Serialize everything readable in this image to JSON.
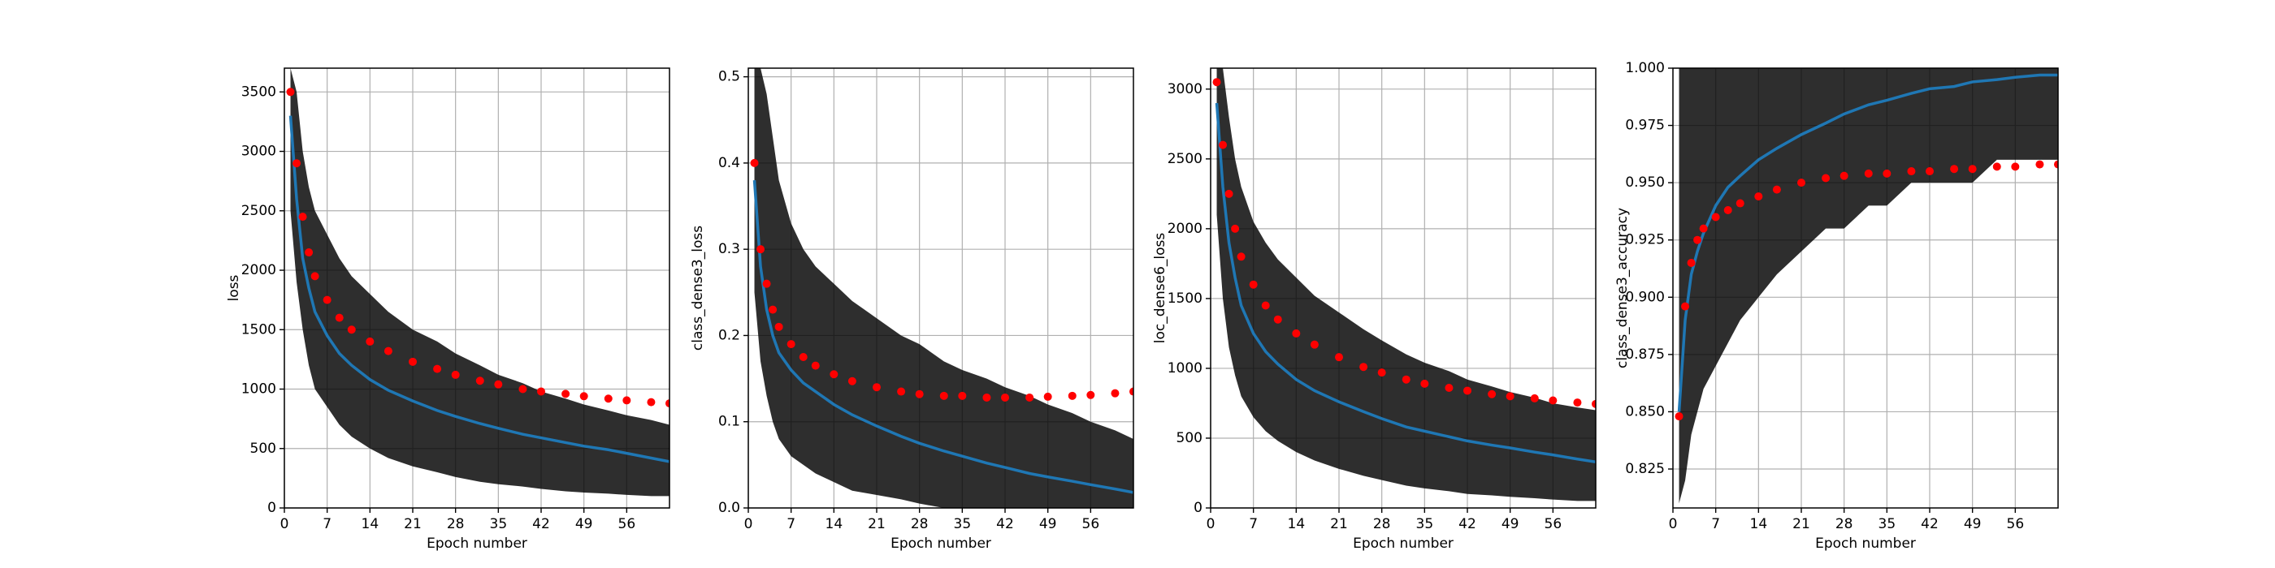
{
  "chart_data": [
    {
      "type": "line",
      "xlabel": "Epoch number",
      "ylabel": "loss",
      "x": [
        1,
        2,
        3,
        4,
        5,
        7,
        9,
        11,
        14,
        17,
        21,
        25,
        28,
        32,
        35,
        39,
        42,
        46,
        49,
        53,
        56,
        60,
        63
      ],
      "xlim": [
        0,
        63
      ],
      "xticks": [
        0,
        7,
        14,
        21,
        28,
        35,
        42,
        49,
        56
      ],
      "ylim": [
        0,
        3700
      ],
      "yticks": [
        0,
        500,
        1000,
        1500,
        2000,
        2500,
        3000,
        3500
      ],
      "grid": true,
      "series": [
        {
          "style": "band",
          "color": "#000000",
          "low": [
            2500,
            1900,
            1500,
            1200,
            1000,
            850,
            700,
            600,
            500,
            420,
            350,
            300,
            260,
            220,
            200,
            180,
            160,
            140,
            130,
            120,
            110,
            100,
            100
          ],
          "high": [
            3700,
            3500,
            3000,
            2700,
            2500,
            2300,
            2100,
            1950,
            1800,
            1650,
            1500,
            1400,
            1300,
            1200,
            1120,
            1050,
            980,
            920,
            870,
            820,
            780,
            740,
            700
          ]
        },
        {
          "style": "line",
          "color": "#1f77b4",
          "values": [
            3300,
            2600,
            2100,
            1850,
            1650,
            1450,
            1300,
            1200,
            1080,
            990,
            900,
            820,
            770,
            710,
            670,
            620,
            590,
            550,
            520,
            490,
            460,
            420,
            390
          ]
        },
        {
          "style": "points",
          "color": "#ff0000",
          "values": [
            3500,
            2900,
            2450,
            2150,
            1950,
            1750,
            1600,
            1500,
            1400,
            1320,
            1230,
            1170,
            1120,
            1070,
            1040,
            1000,
            980,
            960,
            940,
            920,
            905,
            890,
            880
          ]
        }
      ]
    },
    {
      "type": "line",
      "xlabel": "Epoch number",
      "ylabel": "class_dense3_loss",
      "x": [
        1,
        2,
        3,
        4,
        5,
        7,
        9,
        11,
        14,
        17,
        21,
        25,
        28,
        32,
        35,
        39,
        42,
        46,
        49,
        53,
        56,
        60,
        63
      ],
      "xlim": [
        0,
        63
      ],
      "xticks": [
        0,
        7,
        14,
        21,
        28,
        35,
        42,
        49,
        56
      ],
      "ylim": [
        0,
        0.51
      ],
      "yticks": [
        {
          "value": 0,
          "label": "0.0"
        },
        0.1,
        0.2,
        0.3,
        0.4,
        0.5
      ],
      "grid": true,
      "series": [
        {
          "style": "band",
          "color": "#000000",
          "low": [
            0.25,
            0.17,
            0.13,
            0.1,
            0.08,
            0.06,
            0.05,
            0.04,
            0.03,
            0.02,
            0.015,
            0.01,
            0.005,
            0,
            0,
            0,
            0,
            0,
            0,
            0,
            0,
            0,
            0
          ],
          "high": [
            0.51,
            0.51,
            0.48,
            0.43,
            0.38,
            0.33,
            0.3,
            0.28,
            0.26,
            0.24,
            0.22,
            0.2,
            0.19,
            0.17,
            0.16,
            0.15,
            0.14,
            0.13,
            0.12,
            0.11,
            0.1,
            0.09,
            0.08
          ]
        },
        {
          "style": "line",
          "color": "#1f77b4",
          "values": [
            0.38,
            0.28,
            0.23,
            0.2,
            0.18,
            0.16,
            0.145,
            0.135,
            0.12,
            0.108,
            0.095,
            0.083,
            0.075,
            0.066,
            0.06,
            0.052,
            0.047,
            0.04,
            0.036,
            0.031,
            0.027,
            0.022,
            0.018
          ]
        },
        {
          "style": "points",
          "color": "#ff0000",
          "values": [
            0.4,
            0.3,
            0.26,
            0.23,
            0.21,
            0.19,
            0.175,
            0.165,
            0.155,
            0.147,
            0.14,
            0.135,
            0.132,
            0.13,
            0.13,
            0.128,
            0.128,
            0.128,
            0.129,
            0.13,
            0.131,
            0.133,
            0.135
          ]
        }
      ]
    },
    {
      "type": "line",
      "xlabel": "Epoch number",
      "ylabel": "loc_dense6_loss",
      "x": [
        1,
        2,
        3,
        4,
        5,
        7,
        9,
        11,
        14,
        17,
        21,
        25,
        28,
        32,
        35,
        39,
        42,
        46,
        49,
        53,
        56,
        60,
        63
      ],
      "xlim": [
        0,
        63
      ],
      "xticks": [
        0,
        7,
        14,
        21,
        28,
        35,
        42,
        49,
        56
      ],
      "ylim": [
        0,
        3150
      ],
      "yticks": [
        0,
        500,
        1000,
        1500,
        2000,
        2500,
        3000
      ],
      "grid": true,
      "series": [
        {
          "style": "band",
          "color": "#000000",
          "low": [
            2100,
            1500,
            1150,
            950,
            800,
            650,
            550,
            480,
            400,
            340,
            280,
            230,
            200,
            160,
            140,
            120,
            100,
            90,
            80,
            70,
            60,
            50,
            50
          ],
          "high": [
            3150,
            3150,
            2800,
            2500,
            2300,
            2050,
            1900,
            1780,
            1650,
            1520,
            1400,
            1280,
            1200,
            1100,
            1040,
            980,
            920,
            870,
            830,
            790,
            750,
            720,
            700
          ]
        },
        {
          "style": "line",
          "color": "#1f77b4",
          "values": [
            2900,
            2300,
            1900,
            1650,
            1450,
            1250,
            1120,
            1030,
            920,
            840,
            760,
            690,
            640,
            580,
            550,
            510,
            480,
            450,
            430,
            400,
            380,
            350,
            330
          ]
        },
        {
          "style": "points",
          "color": "#ff0000",
          "values": [
            3050,
            2600,
            2250,
            2000,
            1800,
            1600,
            1450,
            1350,
            1250,
            1170,
            1080,
            1010,
            970,
            920,
            890,
            860,
            840,
            815,
            800,
            785,
            770,
            755,
            745
          ]
        }
      ]
    },
    {
      "type": "line",
      "xlabel": "Epoch number",
      "ylabel": "class_dense3_accuracy",
      "x": [
        1,
        2,
        3,
        4,
        5,
        7,
        9,
        11,
        14,
        17,
        21,
        25,
        28,
        32,
        35,
        39,
        42,
        46,
        49,
        53,
        56,
        60,
        63
      ],
      "xlim": [
        0,
        63
      ],
      "xticks": [
        0,
        7,
        14,
        21,
        28,
        35,
        42,
        49,
        56
      ],
      "ylim": [
        0.808,
        1.0
      ],
      "yticks": [
        0.825,
        {
          "value": 0.85,
          "label": "0.850"
        },
        0.875,
        {
          "value": 0.9,
          "label": "0.900"
        },
        0.925,
        {
          "value": 0.95,
          "label": "0.950"
        },
        0.975,
        {
          "value": 1.0,
          "label": "1.000"
        }
      ],
      "grid": true,
      "series": [
        {
          "style": "band",
          "color": "#000000",
          "low": [
            0.81,
            0.82,
            0.84,
            0.85,
            0.86,
            0.87,
            0.88,
            0.89,
            0.9,
            0.91,
            0.92,
            0.93,
            0.93,
            0.94,
            0.94,
            0.95,
            0.95,
            0.95,
            0.95,
            0.96,
            0.96,
            0.96,
            0.96
          ],
          "high": [
            1.0,
            1.0,
            1.0,
            1.0,
            1.0,
            1.0,
            1.0,
            1.0,
            1.0,
            1.0,
            1.0,
            1.0,
            1.0,
            1.0,
            1.0,
            1.0,
            1.0,
            1.0,
            1.0,
            1.0,
            1.0,
            1.0,
            1.0
          ]
        },
        {
          "style": "line",
          "color": "#1f77b4",
          "values": [
            0.85,
            0.89,
            0.91,
            0.92,
            0.928,
            0.94,
            0.948,
            0.953,
            0.96,
            0.965,
            0.971,
            0.976,
            0.98,
            0.984,
            0.986,
            0.989,
            0.991,
            0.992,
            0.994,
            0.995,
            0.996,
            0.997,
            0.997
          ]
        },
        {
          "style": "points",
          "color": "#ff0000",
          "values": [
            0.848,
            0.896,
            0.915,
            0.925,
            0.93,
            0.935,
            0.938,
            0.941,
            0.944,
            0.947,
            0.95,
            0.952,
            0.953,
            0.954,
            0.954,
            0.955,
            0.955,
            0.956,
            0.956,
            0.957,
            0.957,
            0.958,
            0.958
          ]
        }
      ]
    }
  ]
}
